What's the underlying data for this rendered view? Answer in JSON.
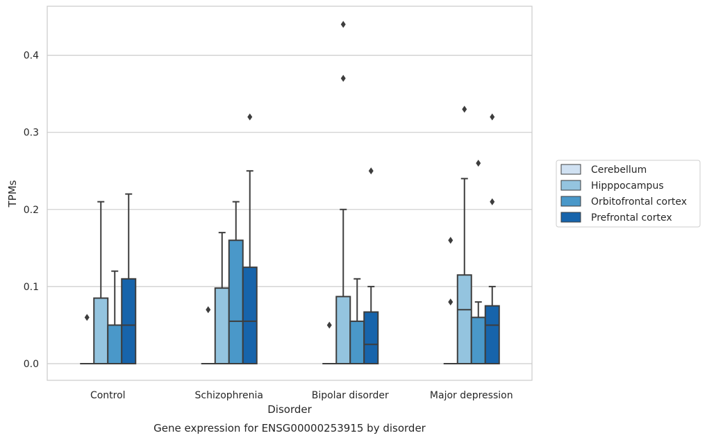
{
  "chart_data": {
    "type": "box",
    "caption": "Gene expression for ENSG00000253915 by disorder",
    "xlabel": "Disorder",
    "ylabel": "TPMs",
    "ylim": [
      -0.022,
      0.464
    ],
    "yticks": [
      0.0,
      0.1,
      0.2,
      0.3,
      0.4
    ],
    "ytick_labels": [
      "0.0",
      "0.1",
      "0.2",
      "0.3",
      "0.4"
    ],
    "grid": true,
    "legend_position": "right",
    "categories": [
      "Control",
      "Schizophrenia",
      "Bipolar disorder",
      "Major depression"
    ],
    "series": [
      {
        "name": "Cerebellum",
        "color": "#d0e1f2",
        "boxes": [
          {
            "q1": 0.0,
            "median": 0.0,
            "q3": 0.0,
            "whisker_low": 0.0,
            "whisker_high": 0.0,
            "outliers": [
              0.06
            ]
          },
          {
            "q1": 0.0,
            "median": 0.0,
            "q3": 0.0,
            "whisker_low": 0.0,
            "whisker_high": 0.0,
            "outliers": [
              0.07
            ]
          },
          {
            "q1": 0.0,
            "median": 0.0,
            "q3": 0.0,
            "whisker_low": 0.0,
            "whisker_high": 0.0,
            "outliers": [
              0.05
            ]
          },
          {
            "q1": 0.0,
            "median": 0.0,
            "q3": 0.0,
            "whisker_low": 0.0,
            "whisker_high": 0.0,
            "outliers": [
              0.16,
              0.08
            ]
          }
        ]
      },
      {
        "name": "Hipppocampus",
        "color": "#94c4df",
        "boxes": [
          {
            "q1": 0.0,
            "median": 0.0,
            "q3": 0.085,
            "whisker_low": 0.0,
            "whisker_high": 0.21,
            "outliers": []
          },
          {
            "q1": 0.0,
            "median": 0.0,
            "q3": 0.098,
            "whisker_low": 0.0,
            "whisker_high": 0.17,
            "outliers": []
          },
          {
            "q1": 0.0,
            "median": 0.0,
            "q3": 0.087,
            "whisker_low": 0.0,
            "whisker_high": 0.2,
            "outliers": [
              0.44,
              0.37
            ]
          },
          {
            "q1": 0.0,
            "median": 0.07,
            "q3": 0.115,
            "whisker_low": 0.0,
            "whisker_high": 0.24,
            "outliers": [
              0.33
            ]
          }
        ]
      },
      {
        "name": "Orbitofrontal cortex",
        "color": "#4a98c9",
        "boxes": [
          {
            "q1": 0.0,
            "median": 0.0,
            "q3": 0.05,
            "whisker_low": 0.0,
            "whisker_high": 0.12,
            "outliers": []
          },
          {
            "q1": 0.0,
            "median": 0.055,
            "q3": 0.16,
            "whisker_low": 0.0,
            "whisker_high": 0.21,
            "outliers": []
          },
          {
            "q1": 0.0,
            "median": 0.0,
            "q3": 0.055,
            "whisker_low": 0.0,
            "whisker_high": 0.11,
            "outliers": []
          },
          {
            "q1": 0.0,
            "median": 0.0,
            "q3": 0.06,
            "whisker_low": 0.0,
            "whisker_high": 0.08,
            "outliers": [
              0.26
            ]
          }
        ]
      },
      {
        "name": "Prefrontal cortex",
        "color": "#1764ab",
        "boxes": [
          {
            "q1": 0.0,
            "median": 0.05,
            "q3": 0.11,
            "whisker_low": 0.0,
            "whisker_high": 0.22,
            "outliers": []
          },
          {
            "q1": 0.0,
            "median": 0.055,
            "q3": 0.125,
            "whisker_low": 0.0,
            "whisker_high": 0.25,
            "outliers": [
              0.32
            ]
          },
          {
            "q1": 0.0,
            "median": 0.025,
            "q3": 0.067,
            "whisker_low": 0.0,
            "whisker_high": 0.1,
            "outliers": [
              0.25
            ]
          },
          {
            "q1": 0.0,
            "median": 0.05,
            "q3": 0.075,
            "whisker_low": 0.0,
            "whisker_high": 0.1,
            "outliers": [
              0.32,
              0.21
            ]
          }
        ]
      }
    ]
  }
}
